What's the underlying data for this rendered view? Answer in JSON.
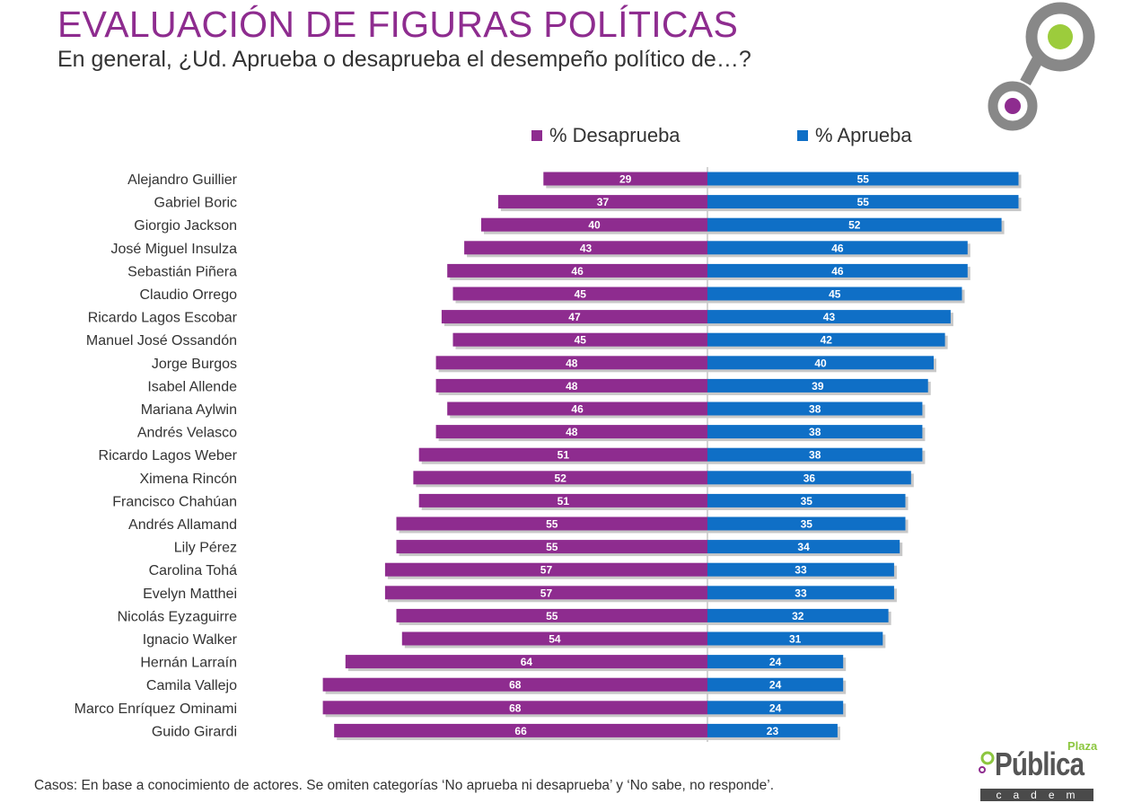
{
  "header": {
    "title": "EVALUACIÓN DE FIGURAS POLÍTICAS",
    "subtitle": "En general, ¿Ud. Aprueba o desaprueba el desempeño político de…?"
  },
  "footnote": "Casos: En base a conocimiento de actores. Se omiten categorías ‘No aprueba ni desaprueba’ y ‘No sabe, no responde’.",
  "logo": {
    "plaza": "Plaza",
    "publica": "Pública",
    "cadem": "cadem"
  },
  "colors": {
    "desaprueba": "#8e2c8f",
    "aprueba": "#0f6fc6",
    "title": "#8e2c8f",
    "ring": "#888888",
    "accent_green": "#9ccc3c"
  },
  "chart_data": {
    "type": "bar",
    "orientation": "horizontal-diverging",
    "legend_position": "top",
    "grid": false,
    "categories": [
      "Alejandro Guillier",
      "Gabriel Boric",
      "Giorgio Jackson",
      "José Miguel Insulza",
      "Sebastián Piñera",
      "Claudio Orrego",
      "Ricardo Lagos Escobar",
      "Manuel José Ossandón",
      "Jorge Burgos",
      "Isabel Allende",
      "Mariana Aylwin",
      "Andrés Velasco",
      "Ricardo Lagos Weber",
      "Ximena Rincón",
      "Francisco Chahúan",
      "Andrés Allamand",
      "Lily Pérez",
      "Carolina Tohá",
      "Evelyn Matthei",
      "Nicolás Eyzaguirre",
      "Ignacio Walker",
      "Hernán Larraín",
      "Camila Vallejo",
      "Marco Enríquez Ominami",
      "Guido Girardi"
    ],
    "series": [
      {
        "name": "% Desaprueba",
        "color": "#8e2c8f",
        "values": [
          29,
          37,
          40,
          43,
          46,
          45,
          47,
          45,
          48,
          48,
          46,
          48,
          51,
          52,
          51,
          55,
          55,
          57,
          57,
          55,
          54,
          64,
          68,
          68,
          66
        ]
      },
      {
        "name": "% Aprueba",
        "color": "#0f6fc6",
        "values": [
          55,
          55,
          52,
          46,
          46,
          45,
          43,
          42,
          40,
          39,
          38,
          38,
          38,
          36,
          35,
          35,
          34,
          33,
          33,
          32,
          31,
          24,
          24,
          24,
          23
        ]
      }
    ]
  }
}
